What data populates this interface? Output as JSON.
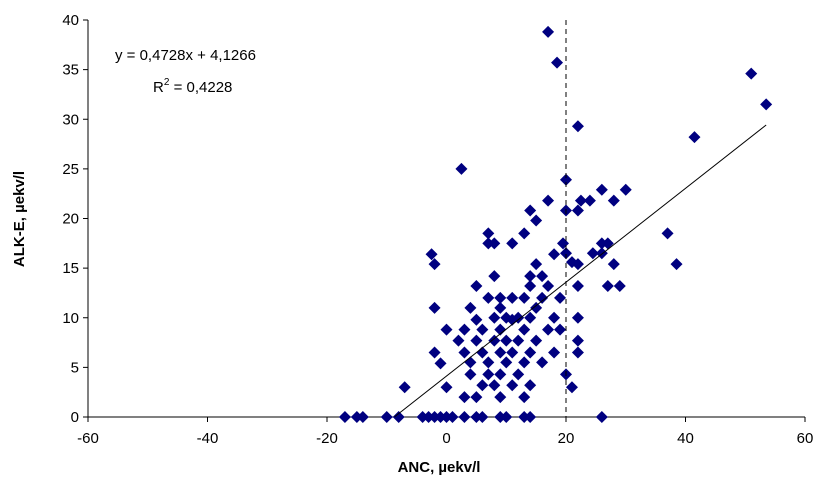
{
  "chart_data": {
    "type": "scatter",
    "xlabel": "ANC, µekv/l",
    "ylabel": "ALK-E, µekv/l",
    "xlim": [
      -60,
      60
    ],
    "ylim": [
      0,
      40
    ],
    "xticks": [
      "-60",
      "-40",
      "-20",
      "0",
      "20",
      "40",
      "60"
    ],
    "yticks": [
      "0",
      "5",
      "10",
      "15",
      "20",
      "25",
      "30",
      "35",
      "40"
    ],
    "grid": false,
    "legend": "none",
    "marker_color": "#000080",
    "trendline": {
      "slope": 0.4728,
      "intercept": 4.1266,
      "x_start": -8.7,
      "x_end": 53.5
    },
    "reference_line": {
      "x": 20,
      "style": "dashed"
    },
    "annotation": {
      "equation": "y = 0,4728x + 4,1266",
      "r2_prefix": "R",
      "r2_sup": "2",
      "r2_value": " = 0,4228"
    },
    "series": [
      {
        "points": [
          [
            17,
            38.8
          ],
          [
            18.5,
            35.7
          ],
          [
            51,
            34.6
          ],
          [
            53.5,
            31.5
          ],
          [
            22,
            29.3
          ],
          [
            41.5,
            28.2
          ],
          [
            2.5,
            25
          ],
          [
            20,
            23.9
          ],
          [
            26,
            22.9
          ],
          [
            30,
            22.9
          ],
          [
            22.5,
            21.8
          ],
          [
            24,
            21.8
          ],
          [
            28,
            21.8
          ],
          [
            17,
            21.8
          ],
          [
            14,
            20.8
          ],
          [
            20,
            20.8
          ],
          [
            22,
            20.8
          ],
          [
            15,
            19.8
          ],
          [
            37,
            18.5
          ],
          [
            7,
            18.5
          ],
          [
            13,
            18.5
          ],
          [
            11,
            17.5
          ],
          [
            19.5,
            17.5
          ],
          [
            8,
            17.5
          ],
          [
            26,
            17.5
          ],
          [
            27,
            17.5
          ],
          [
            7,
            17.5
          ],
          [
            20,
            16.5
          ],
          [
            24.5,
            16.5
          ],
          [
            26,
            16.5
          ],
          [
            -2.5,
            16.4
          ],
          [
            18,
            16.4
          ],
          [
            21,
            15.6
          ],
          [
            -2,
            15.4
          ],
          [
            15,
            15.4
          ],
          [
            22,
            15.4
          ],
          [
            28,
            15.4
          ],
          [
            38.5,
            15.4
          ],
          [
            8,
            14.2
          ],
          [
            14,
            14.2
          ],
          [
            16,
            14.2
          ],
          [
            14,
            13.2
          ],
          [
            17,
            13.2
          ],
          [
            5,
            13.2
          ],
          [
            22,
            13.2
          ],
          [
            27,
            13.2
          ],
          [
            29,
            13.2
          ],
          [
            7,
            12
          ],
          [
            9,
            12
          ],
          [
            11,
            12
          ],
          [
            13,
            12
          ],
          [
            16,
            12
          ],
          [
            19,
            12
          ],
          [
            9,
            11
          ],
          [
            15,
            11
          ],
          [
            -2,
            11
          ],
          [
            4,
            11
          ],
          [
            8,
            10
          ],
          [
            10,
            10
          ],
          [
            12,
            10
          ],
          [
            14,
            10
          ],
          [
            18,
            10
          ],
          [
            22,
            10
          ],
          [
            5,
            9.8
          ],
          [
            11,
            9.8
          ],
          [
            0,
            8.8
          ],
          [
            3,
            8.8
          ],
          [
            6,
            8.8
          ],
          [
            9,
            8.8
          ],
          [
            13,
            8.8
          ],
          [
            17,
            8.8
          ],
          [
            19,
            8.8
          ],
          [
            2,
            7.7
          ],
          [
            5,
            7.7
          ],
          [
            8,
            7.7
          ],
          [
            10,
            7.7
          ],
          [
            12,
            7.7
          ],
          [
            15,
            7.7
          ],
          [
            22,
            7.7
          ],
          [
            3,
            6.5
          ],
          [
            6,
            6.5
          ],
          [
            9,
            6.5
          ],
          [
            11,
            6.5
          ],
          [
            14,
            6.5
          ],
          [
            18,
            6.5
          ],
          [
            22,
            6.5
          ],
          [
            -2,
            6.5
          ],
          [
            4,
            5.5
          ],
          [
            7,
            5.5
          ],
          [
            10,
            5.5
          ],
          [
            13,
            5.5
          ],
          [
            16,
            5.5
          ],
          [
            -1,
            5.4
          ],
          [
            20,
            4.3
          ],
          [
            4,
            4.3
          ],
          [
            7,
            4.3
          ],
          [
            9,
            4.3
          ],
          [
            12,
            4.3
          ],
          [
            6,
            3.2
          ],
          [
            8,
            3.2
          ],
          [
            11,
            3.2
          ],
          [
            14,
            3.2
          ],
          [
            -7,
            3
          ],
          [
            21,
            3
          ],
          [
            0,
            3
          ],
          [
            3,
            2
          ],
          [
            5,
            2
          ],
          [
            9,
            2
          ],
          [
            13,
            2
          ],
          [
            -17,
            0
          ],
          [
            -15,
            0
          ],
          [
            -14,
            0
          ],
          [
            -10,
            0
          ],
          [
            -8,
            0
          ],
          [
            -4,
            0
          ],
          [
            -3,
            0
          ],
          [
            -2,
            0
          ],
          [
            -1,
            0
          ],
          [
            0,
            0
          ],
          [
            1,
            0
          ],
          [
            3,
            0
          ],
          [
            5,
            0
          ],
          [
            6,
            0
          ],
          [
            9,
            0
          ],
          [
            10,
            0
          ],
          [
            13,
            0
          ],
          [
            14,
            0
          ],
          [
            26,
            0
          ]
        ]
      }
    ]
  }
}
